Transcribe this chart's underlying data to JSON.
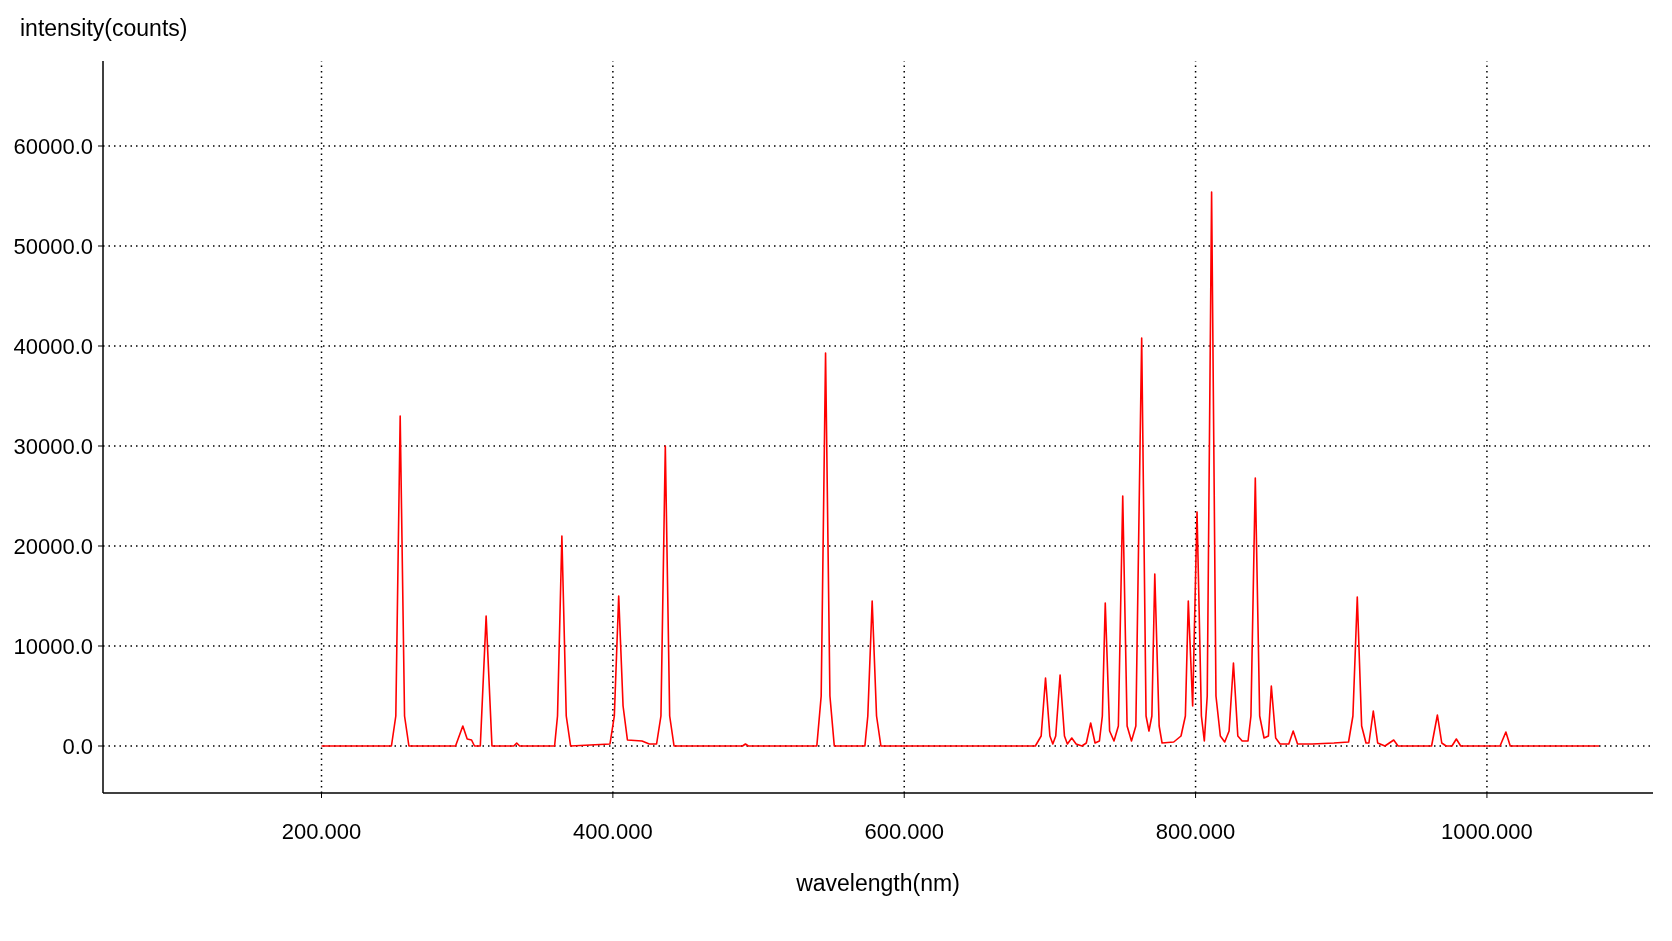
{
  "chart_data": {
    "type": "line",
    "xlabel": "wavelength(nm)",
    "ylabel": "intensity(counts)",
    "x": [
      200,
      248,
      251,
      254,
      257,
      260,
      292,
      297,
      300,
      303,
      305,
      309,
      313,
      317,
      332,
      334,
      336,
      360,
      362,
      365,
      368,
      371,
      398,
      401,
      404,
      407,
      410,
      420,
      425,
      430,
      433,
      436,
      439,
      442,
      489,
      491,
      493,
      540,
      543,
      546,
      549,
      552,
      573,
      575,
      578,
      581,
      584,
      690,
      694,
      697,
      700,
      702,
      704,
      707,
      710,
      712,
      715,
      718,
      722,
      725,
      728,
      731,
      734,
      736,
      738,
      741,
      744,
      747,
      750,
      753,
      756,
      759,
      763,
      766,
      768,
      770,
      772,
      775,
      777,
      785,
      790,
      793,
      795,
      798,
      801,
      804,
      806,
      808,
      811,
      814,
      817,
      820,
      823,
      826,
      829,
      832,
      836,
      838,
      841,
      844,
      847,
      850,
      852,
      855,
      858,
      864,
      867,
      870,
      880,
      895,
      905,
      908,
      911,
      914,
      917,
      919,
      922,
      925,
      930,
      936,
      939,
      962,
      966,
      969,
      972,
      976,
      979,
      982,
      1009,
      1013,
      1016,
      1077
    ],
    "series": [
      {
        "color": "#ff0000",
        "values": [
          0,
          0,
          3000,
          33000,
          3000,
          0,
          0,
          2000,
          700,
          600,
          0,
          0,
          13000,
          0,
          0,
          300,
          0,
          0,
          3000,
          21000,
          3000,
          0,
          200,
          3000,
          15000,
          4000,
          600,
          500,
          200,
          200,
          3000,
          30000,
          3000,
          0,
          0,
          200,
          0,
          0,
          5000,
          39300,
          5000,
          0,
          0,
          3000,
          14500,
          3000,
          0,
          0,
          1000,
          6800,
          1000,
          200,
          1000,
          7100,
          1000,
          200,
          800,
          200,
          0,
          300,
          2300,
          300,
          500,
          3000,
          14300,
          1500,
          500,
          2000,
          25000,
          2000,
          500,
          2000,
          40800,
          3000,
          1500,
          3000,
          17200,
          2000,
          300,
          400,
          1000,
          3000,
          14500,
          4000,
          23400,
          3000,
          500,
          5000,
          55400,
          5000,
          1000,
          400,
          1500,
          8300,
          1000,
          500,
          500,
          3000,
          26800,
          3000,
          800,
          1000,
          6000,
          800,
          200,
          200,
          1500,
          200,
          200,
          300,
          400,
          3000,
          14900,
          2000,
          300,
          300,
          3500,
          300,
          0,
          600,
          0,
          0,
          3100,
          300,
          0,
          0,
          700,
          0,
          0,
          1400,
          0,
          0
        ]
      }
    ],
    "xlim": [
      50,
      1114
    ],
    "ylim": [
      -4700,
      68500
    ],
    "xticks": [
      {
        "value": 200,
        "label": "200.000"
      },
      {
        "value": 400,
        "label": "400.000"
      },
      {
        "value": 600,
        "label": "600.000"
      },
      {
        "value": 800,
        "label": "800.000"
      },
      {
        "value": 1000,
        "label": "1000.000"
      }
    ],
    "yticks": [
      {
        "value": 0,
        "label": "0.0"
      },
      {
        "value": 10000,
        "label": "10000.0"
      },
      {
        "value": 20000,
        "label": "20000.0"
      },
      {
        "value": 30000,
        "label": "30000.0"
      },
      {
        "value": 40000,
        "label": "40000.0"
      },
      {
        "value": 50000,
        "label": "50000.0"
      },
      {
        "value": 60000,
        "label": "60000.0"
      }
    ],
    "grid": true,
    "line_style": "solid"
  }
}
